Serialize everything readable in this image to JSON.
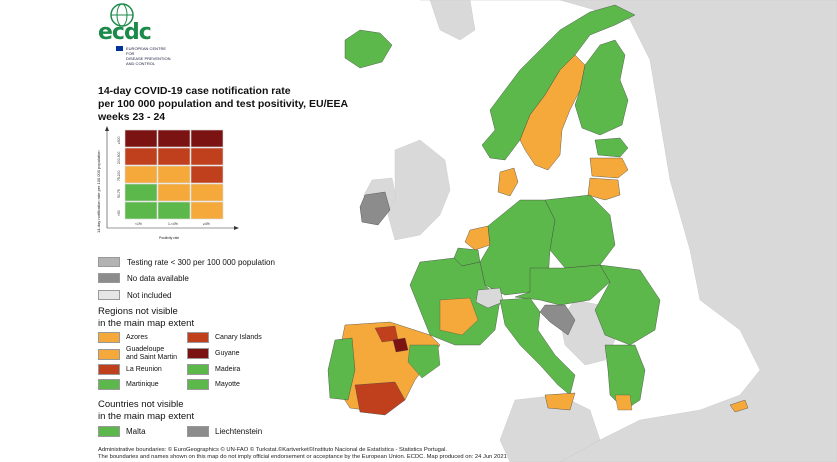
{
  "logo": {
    "text": "ecdc",
    "subtitle_lines": [
      "EUROPEAN CENTRE FOR",
      "DISEASE PREVENTION",
      "AND CONTROL"
    ]
  },
  "title_lines": [
    "14-day COVID-19 case notification rate",
    "per 100 000 population and test positivity, EU/EEA",
    "weeks 23 - 24"
  ],
  "matrix": {
    "y_axis_label": "14-day notification rate per 100 000 population",
    "y_ticks": [
      "<50",
      "50-75",
      "75-200",
      "200-500",
      "≥500"
    ],
    "x_ticks": [
      "<1%",
      "1-<4%",
      "≥4%"
    ],
    "x_axis_label": "Positivity rate"
  },
  "legend": {
    "testing_rate": "Testing rate < 300 per 100 000 population",
    "no_data": "No data available",
    "not_included": "Not included"
  },
  "regions_title_lines": [
    "Regions not visible",
    "in the main map extent"
  ],
  "regions": [
    {
      "label_lines": [
        "Azores"
      ],
      "color": "#f5a93a"
    },
    {
      "label_lines": [
        "Canary Islands"
      ],
      "color": "#c0401e"
    },
    {
      "label_lines": [
        "Guadeloupe",
        "and Saint Martin"
      ],
      "color": "#f5a93a"
    },
    {
      "label_lines": [
        "Guyane"
      ],
      "color": "#7b1313"
    },
    {
      "label_lines": [
        "La Reunion"
      ],
      "color": "#c0401e"
    },
    {
      "label_lines": [
        "Madeira"
      ],
      "color": "#5cb84a"
    },
    {
      "label_lines": [
        "Martinique"
      ],
      "color": "#5cb84a"
    },
    {
      "label_lines": [
        "Mayotte"
      ],
      "color": "#5cb84a"
    }
  ],
  "countries_title_lines": [
    "Countries not visible",
    "in the main map extent"
  ],
  "countries": [
    {
      "label": "Malta",
      "color": "#5cb84a"
    },
    {
      "label": "Liechtenstein",
      "color": "#8c8c8c"
    }
  ],
  "footer_lines": [
    "Administrative boundaries: © EuroGeographics © UN-FAO © Turkstat.©Kartverket©Instituto Nacional de Estatística - Statistics Portugal.",
    "The boundaries and names shown on this map do not imply official endorsement or acceptance by the European Union. ECDC. Map produced on: 24 Jun 2021"
  ],
  "colors": {
    "green": "#5cb84a",
    "orange": "#f5a93a",
    "red": "#c0401e",
    "dark_red": "#7b1313",
    "grey": "#8c8c8c",
    "not_included": "#d9d9d9",
    "sea": "#ffffff"
  }
}
